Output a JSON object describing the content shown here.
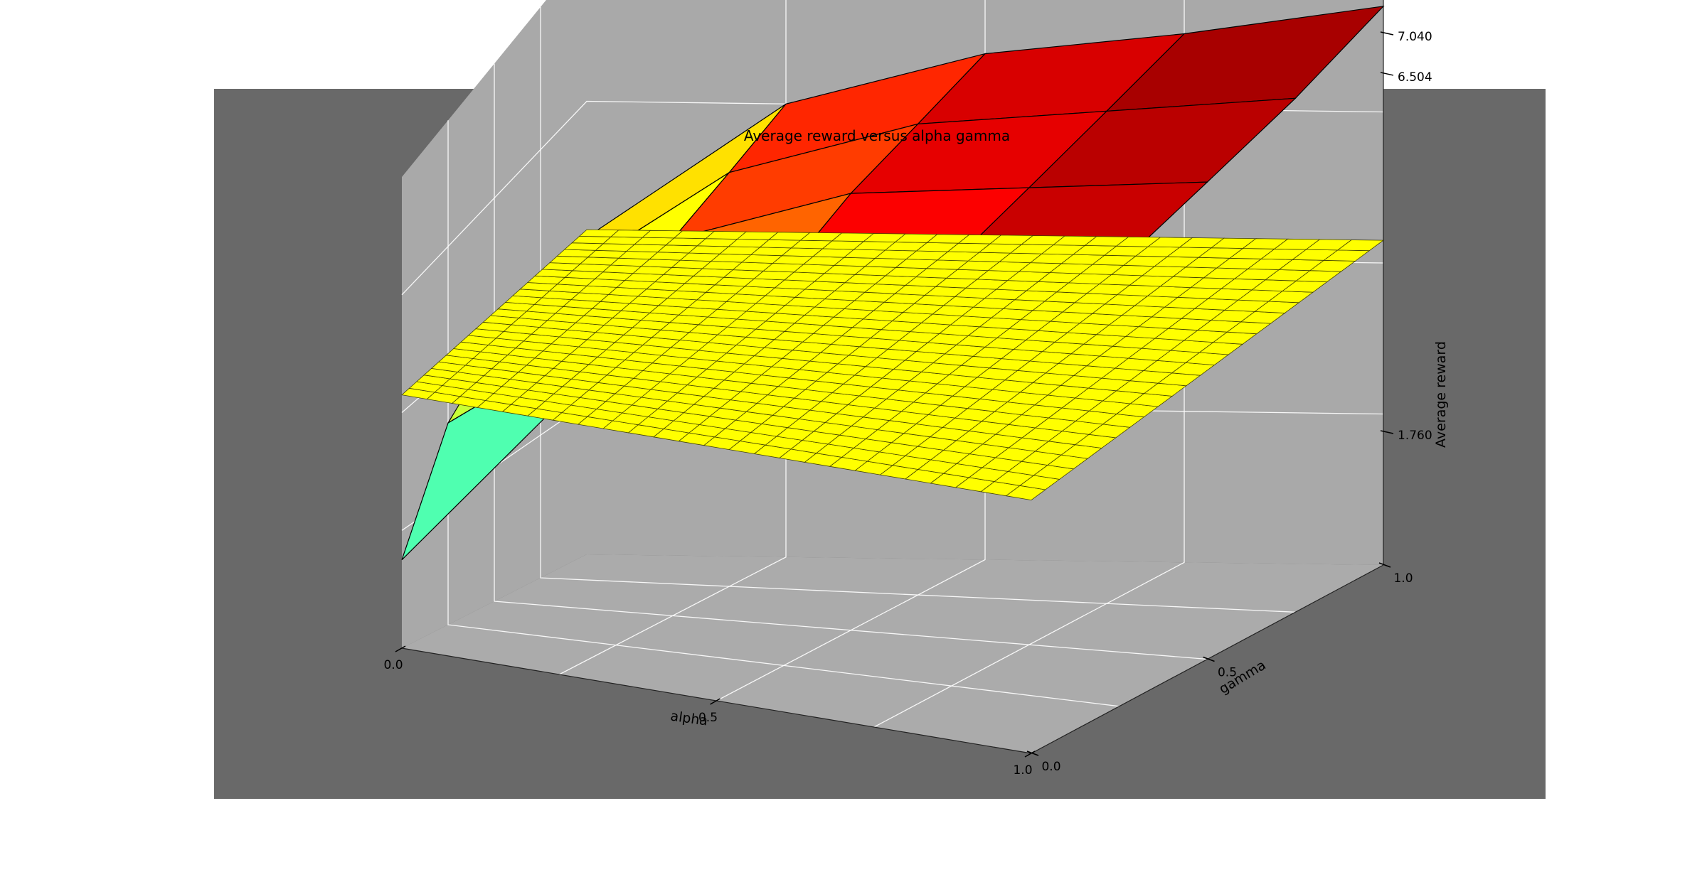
{
  "chart_data": {
    "type": "surface3d",
    "title": "Average reward versus alpha gamma",
    "xlabel": "alpha",
    "ylabel": "gamma",
    "zlabel": "Average reward",
    "x_ticks": [
      "0.0",
      "0.5",
      "1.0"
    ],
    "y_ticks": [
      "0.0",
      "0.5",
      "1.0"
    ],
    "z_ticks": [
      "1.760",
      "6.504",
      "7.040"
    ],
    "xlim": [
      0,
      1
    ],
    "ylim": [
      0,
      1
    ],
    "zlim": [
      0,
      8
    ],
    "grid": true,
    "colors": {
      "figure_bg": "#ffffff",
      "axes_bg": "#696969",
      "pane": "#a9a9a9",
      "plane": "#ffff00",
      "low": "#2fffd0",
      "high": "#8b0000"
    },
    "plane_value": 4.3,
    "surface": {
      "x": [
        0,
        0.25,
        0.5,
        0.75,
        1
      ],
      "y": [
        0,
        0.25,
        0.5,
        0.75,
        1
      ],
      "z": [
        [
          1.5,
          4.6,
          5.6,
          6.4,
          6.9
        ],
        [
          3.2,
          5.1,
          6.2,
          6.7,
          7.0
        ],
        [
          3.8,
          5.6,
          6.5,
          6.8,
          7.1
        ],
        [
          4.0,
          5.8,
          6.6,
          6.9,
          7.2
        ],
        [
          4.2,
          6.0,
          6.7,
          7.0,
          7.4
        ]
      ]
    }
  }
}
